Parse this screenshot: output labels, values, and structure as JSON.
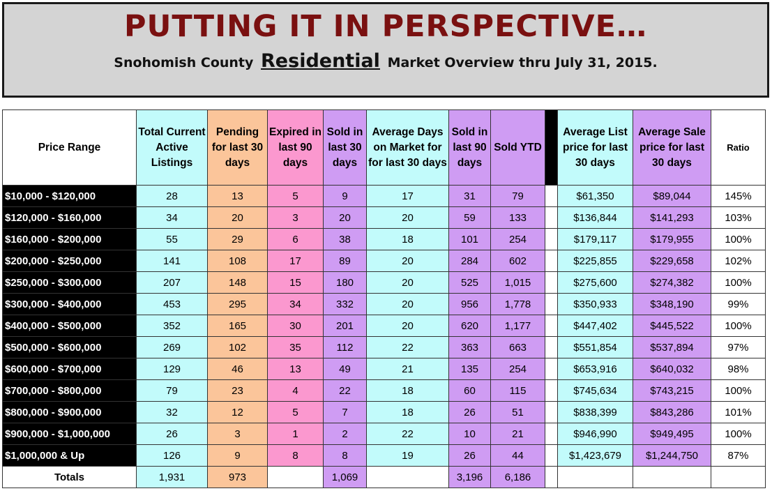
{
  "header": {
    "title": "PUTTING IT IN PERSPECTIVE…",
    "subtitle_pre": "Snohomish County",
    "subtitle_emph": "Residential",
    "subtitle_post": "Market Overview thru July 31, 2015."
  },
  "columns": {
    "price_range": "Price Range",
    "active": "Total Current Active Listings",
    "pending": "Pending for last 30 days",
    "expired": "Expired in last 90 days",
    "sold30": "Sold in last 30 days",
    "dom": "Average Days on Market for for last 30 days",
    "sold90": "Sold in last 90 days",
    "ytd": "Sold YTD",
    "avg_list": "Average List price for last 30 days",
    "avg_sale": "Average Sale price for last 30 days",
    "ratio": "Ratio"
  },
  "rows": [
    {
      "range": "$10,000 - $120,000",
      "active": "28",
      "pending": "13",
      "expired": "5",
      "sold30": "9",
      "dom": "17",
      "sold90": "31",
      "ytd": "79",
      "avg_list": "$61,350",
      "avg_sale": "$89,044",
      "ratio": "145%"
    },
    {
      "range": "$120,000 - $160,000",
      "active": "34",
      "pending": "20",
      "expired": "3",
      "sold30": "20",
      "dom": "20",
      "sold90": "59",
      "ytd": "133",
      "avg_list": "$136,844",
      "avg_sale": "$141,293",
      "ratio": "103%"
    },
    {
      "range": "$160,000 - $200,000",
      "active": "55",
      "pending": "29",
      "expired": "6",
      "sold30": "38",
      "dom": "18",
      "sold90": "101",
      "ytd": "254",
      "avg_list": "$179,117",
      "avg_sale": "$179,955",
      "ratio": "100%"
    },
    {
      "range": "$200,000 - $250,000",
      "active": "141",
      "pending": "108",
      "expired": "17",
      "sold30": "89",
      "dom": "20",
      "sold90": "284",
      "ytd": "602",
      "avg_list": "$225,855",
      "avg_sale": "$229,658",
      "ratio": "102%"
    },
    {
      "range": "$250,000 - $300,000",
      "active": "207",
      "pending": "148",
      "expired": "15",
      "sold30": "180",
      "dom": "20",
      "sold90": "525",
      "ytd": "1,015",
      "avg_list": "$275,600",
      "avg_sale": "$274,382",
      "ratio": "100%"
    },
    {
      "range": "$300,000 - $400,000",
      "active": "453",
      "pending": "295",
      "expired": "34",
      "sold30": "332",
      "dom": "20",
      "sold90": "956",
      "ytd": "1,778",
      "avg_list": "$350,933",
      "avg_sale": "$348,190",
      "ratio": "99%"
    },
    {
      "range": "$400,000 - $500,000",
      "active": "352",
      "pending": "165",
      "expired": "30",
      "sold30": "201",
      "dom": "20",
      "sold90": "620",
      "ytd": "1,177",
      "avg_list": "$447,402",
      "avg_sale": "$445,522",
      "ratio": "100%"
    },
    {
      "range": "$500,000 - $600,000",
      "active": "269",
      "pending": "102",
      "expired": "35",
      "sold30": "112",
      "dom": "22",
      "sold90": "363",
      "ytd": "663",
      "avg_list": "$551,854",
      "avg_sale": "$537,894",
      "ratio": "97%"
    },
    {
      "range": "$600,000 - $700,000",
      "active": "129",
      "pending": "46",
      "expired": "13",
      "sold30": "49",
      "dom": "21",
      "sold90": "135",
      "ytd": "254",
      "avg_list": "$653,916",
      "avg_sale": "$640,032",
      "ratio": "98%"
    },
    {
      "range": "$700,000 - $800,000",
      "active": "79",
      "pending": "23",
      "expired": "4",
      "sold30": "22",
      "dom": "18",
      "sold90": "60",
      "ytd": "115",
      "avg_list": "$745,634",
      "avg_sale": "$743,215",
      "ratio": "100%"
    },
    {
      "range": "$800,000 - $900,000",
      "active": "32",
      "pending": "12",
      "expired": "5",
      "sold30": "7",
      "dom": "18",
      "sold90": "26",
      "ytd": "51",
      "avg_list": "$838,399",
      "avg_sale": "$843,286",
      "ratio": "101%"
    },
    {
      "range": "$900,000 - $1,000,000",
      "active": "26",
      "pending": "3",
      "expired": "1",
      "sold30": "2",
      "dom": "22",
      "sold90": "10",
      "ytd": "21",
      "avg_list": "$946,990",
      "avg_sale": "$949,495",
      "ratio": "100%"
    },
    {
      "range": "$1,000,000 & Up",
      "active": "126",
      "pending": "9",
      "expired": "8",
      "sold30": "8",
      "dom": "19",
      "sold90": "26",
      "ytd": "44",
      "avg_list": "$1,423,679",
      "avg_sale": "$1,244,750",
      "ratio": "87%"
    }
  ],
  "totals": {
    "label": "Totals",
    "active": "1,931",
    "pending": "973",
    "expired": "",
    "sold30": "1,069",
    "dom": "",
    "sold90": "3,196",
    "ytd": "6,186",
    "avg_list": "",
    "avg_sale": "",
    "ratio": ""
  },
  "colors": {
    "title": "#7a1010",
    "banner_bg": "#d4d4d4",
    "cyan": "#c2fbfb",
    "orange": "#fbc59a",
    "pink": "#fb98cf",
    "purple": "#cf9cf3"
  }
}
